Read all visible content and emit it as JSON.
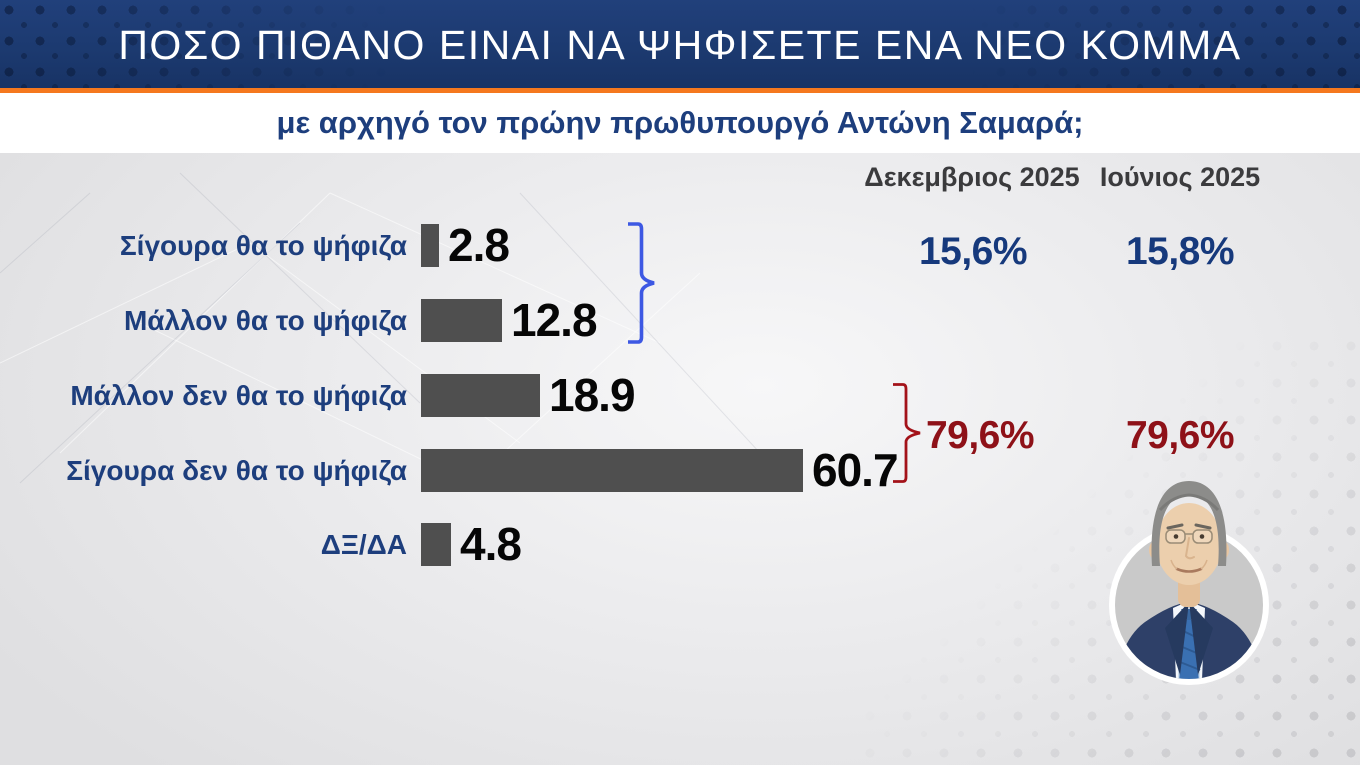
{
  "header": {
    "title": "ΠΟΣΟ ΠΙΘΑΝΟ ΕΙΝΑΙ ΝΑ ΨΗΦΙΣΕΤΕ ΕΝΑ ΝΕΟ ΚΟΜΜΑ",
    "subtitle": "με αρχηγό τον πρώην πρωθυπουργό Αντώνη Σαμαρά;"
  },
  "chart_data": {
    "type": "bar",
    "orientation": "horizontal",
    "title": "ΠΟΣΟ ΠΙΘΑΝΟ ΕΙΝΑΙ ΝΑ ΨΗΦΙΣΕΤΕ ΕΝΑ ΝΕΟ ΚΟΜΜΑ",
    "subtitle": "με αρχηγό τον πρώην πρωθυπουργό Αντώνη Σαμαρά;",
    "categories": [
      "Σίγουρα θα το ψήφιζα",
      "Μάλλον θα το ψήφιζα",
      "Μάλλον δεν θα το ψήφιζα",
      "Σίγουρα δεν θα το ψήφιζα",
      "ΔΞ/ΔΑ"
    ],
    "values": [
      2.8,
      12.8,
      18.9,
      60.7,
      4.8
    ],
    "value_labels": [
      "2.8",
      "12.8",
      "18.9",
      "60.7",
      "4.8"
    ],
    "xlim": [
      0,
      65
    ],
    "grid": false,
    "bar_color": "#4f4f4f",
    "summary_columns": [
      "Δεκεμβριος 2025",
      "Ιούνιος 2025"
    ],
    "summary_groups": [
      {
        "name": "would-vote (sum of first two bars)",
        "span_categories": [
          0,
          1
        ],
        "color": "#16397c",
        "bracket_color": "#3d58e3",
        "values": [
          "15,6%",
          "15,8%"
        ]
      },
      {
        "name": "would-not-vote (sum of middle two bars)",
        "span_categories": [
          2,
          3
        ],
        "color": "#8e1118",
        "bracket_color": "#a31219",
        "values": [
          "79,6%",
          "79,6%"
        ]
      }
    ]
  },
  "portrait": {
    "alt": "Αντώνης Σαμαράς"
  },
  "colors": {
    "header_bg": "#1c3a70",
    "accent_orange": "#f5781e",
    "label_blue": "#1d3e7d",
    "bar_gray": "#4f4f4f",
    "positive_blue": "#16397c",
    "negative_red": "#8e1118",
    "bracket_blue": "#3d58e3",
    "bracket_red": "#a31219"
  }
}
